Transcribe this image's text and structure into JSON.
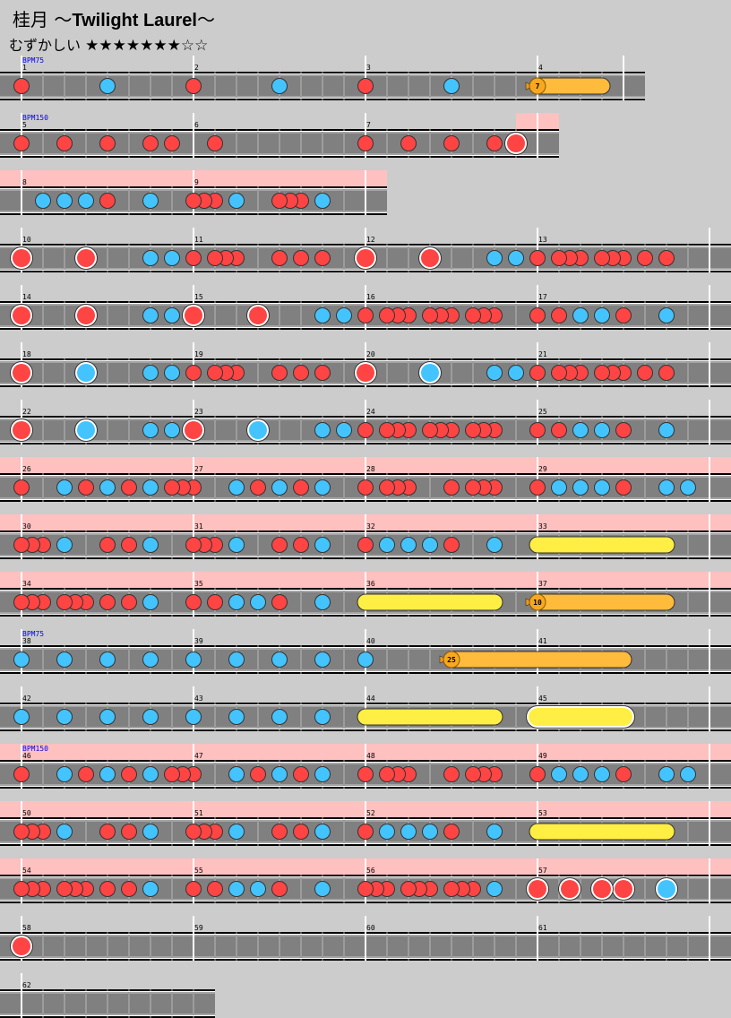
{
  "header": {
    "title_jp": "桂月 ～",
    "title_en": "Twilight Laurel",
    "title_tail": "～",
    "difficulty_label": "むずかしい",
    "level": 7,
    "max_level": 9,
    "star_filled": "★",
    "star_empty": "☆"
  },
  "colors": {
    "background": "#cccccc",
    "don": "#ff4444",
    "ka": "#44c4ff",
    "drumroll": "#ffee44",
    "balloon": "#ffbb3c",
    "gogo": "#ffc0c0",
    "bpm_text": "#0000ee"
  },
  "legend": {
    "1": "don",
    "2": "ka",
    "3": "big-don",
    "4": "big-ka",
    "5": "drumroll",
    "6": "big-drumroll",
    "7": "balloon",
    "8": "roll-end"
  },
  "balloons": [
    7,
    10,
    25
  ],
  "rows": [
    {
      "measures": [
        {
          "num": "1",
          "bpm": "BPM75",
          "notes": "1000000020000000"
        },
        {
          "num": "2",
          "notes": "1000000020000000"
        },
        {
          "num": "3",
          "notes": "1000000020000000"
        },
        {
          "num": "4",
          "notes": "70000080"
        }
      ]
    },
    {
      "measures": [
        {
          "num": "5",
          "bpm": "BPM150",
          "notes": "1000100010001010"
        },
        {
          "num": "6",
          "notes": "0010000000000000"
        },
        {
          "num": "7",
          "notes": "1000100010001030",
          "gogo": 14
        }
      ]
    },
    {
      "measures": [
        {
          "num": "8",
          "notes": "0020202010002000",
          "gogo": 0
        },
        {
          "num": "9",
          "notes": "1110200011102000",
          "gogo": 0
        }
      ]
    },
    {
      "measures": [
        {
          "num": "10",
          "notes": "3000003000002020"
        },
        {
          "num": "11",
          "notes": "1011100010101000"
        },
        {
          "num": "12",
          "notes": "3000003000002020"
        },
        {
          "num": "13",
          "notes": "1011101110101000"
        }
      ]
    },
    {
      "measures": [
        {
          "num": "14",
          "notes": "3000003000002020"
        },
        {
          "num": "15",
          "notes": "3000003000002020"
        },
        {
          "num": "16",
          "notes": "1011101110111000"
        },
        {
          "num": "17",
          "notes": "1010202010002000"
        }
      ]
    },
    {
      "measures": [
        {
          "num": "18",
          "notes": "3000004000002020"
        },
        {
          "num": "19",
          "notes": "1011100010101000"
        },
        {
          "num": "20",
          "notes": "3000004000002020"
        },
        {
          "num": "21",
          "notes": "1011101110101000"
        }
      ]
    },
    {
      "measures": [
        {
          "num": "22",
          "notes": "3000004000002020"
        },
        {
          "num": "23",
          "notes": "3000004000002020"
        },
        {
          "num": "24",
          "notes": "1011101110111000"
        },
        {
          "num": "25",
          "notes": "1010202010002000"
        }
      ]
    },
    {
      "measures": [
        {
          "num": "26",
          "notes": "1000201020102011",
          "gogo": 0
        },
        {
          "num": "27",
          "notes": "1000201020102000",
          "gogo": 0
        },
        {
          "num": "28",
          "notes": "1011100010111000",
          "gogo": 0
        },
        {
          "num": "29",
          "notes": "1020202010002020",
          "gogo": 0
        }
      ]
    },
    {
      "measures": [
        {
          "num": "30",
          "notes": "1110200010102000",
          "gogo": 0
        },
        {
          "num": "31",
          "notes": "1110200010102000",
          "gogo": 0
        },
        {
          "num": "32",
          "notes": "1020202010002000",
          "gogo": 0
        },
        {
          "num": "33",
          "notes": "5000000000008000",
          "gogo": 0
        }
      ]
    },
    {
      "measures": [
        {
          "num": "34",
          "notes": "1110111010102000",
          "gogo": 0
        },
        {
          "num": "35",
          "notes": "1010202010002000",
          "gogo": 0
        },
        {
          "num": "36",
          "notes": "5000000000008000",
          "gogo": 0
        },
        {
          "num": "37",
          "notes": "7000000000008000",
          "gogo": 0
        }
      ]
    },
    {
      "measures": [
        {
          "num": "38",
          "bpm": "BPM75",
          "notes": "2000200020002000"
        },
        {
          "num": "39",
          "notes": "2000200020002000"
        },
        {
          "num": "40",
          "notes": "2000000070000000"
        },
        {
          "num": "41",
          "notes": "0000000080000000"
        }
      ]
    },
    {
      "measures": [
        {
          "num": "42",
          "notes": "2000200020002000"
        },
        {
          "num": "43",
          "notes": "2000200020002000"
        },
        {
          "num": "44",
          "notes": "5000000000008000"
        },
        {
          "num": "45",
          "notes": "6000000080000000"
        }
      ]
    },
    {
      "measures": [
        {
          "num": "46",
          "bpm": "BPM150",
          "notes": "1000201020102011",
          "gogo": 0
        },
        {
          "num": "47",
          "notes": "1000201020102000",
          "gogo": 0
        },
        {
          "num": "48",
          "notes": "1011100010111000",
          "gogo": 0
        },
        {
          "num": "49",
          "notes": "1020202010002020",
          "gogo": 0
        }
      ]
    },
    {
      "measures": [
        {
          "num": "50",
          "notes": "1110200010102000",
          "gogo": 0
        },
        {
          "num": "51",
          "notes": "1110200010102000",
          "gogo": 0
        },
        {
          "num": "52",
          "notes": "1020202010002000",
          "gogo": 0
        },
        {
          "num": "53",
          "notes": "5000000000008000",
          "gogo": 0
        }
      ]
    },
    {
      "measures": [
        {
          "num": "54",
          "notes": "1110111010102000",
          "gogo": 0
        },
        {
          "num": "55",
          "notes": "1010202010002000",
          "gogo": 0
        },
        {
          "num": "56",
          "notes": "1110111011102000",
          "gogo": 0
        },
        {
          "num": "57",
          "notes": "3003003030004000",
          "gogo": 0
        }
      ]
    },
    {
      "measures": [
        {
          "num": "58",
          "notes": "3000000000000000"
        },
        {
          "num": "59",
          "notes": "0000000000000000"
        },
        {
          "num": "60",
          "notes": "0000000000000000"
        },
        {
          "num": "61",
          "notes": "0000000000000000"
        }
      ]
    },
    {
      "measures": [
        {
          "num": "62",
          "notes": "0000000000000000"
        }
      ],
      "open_end": true
    }
  ]
}
